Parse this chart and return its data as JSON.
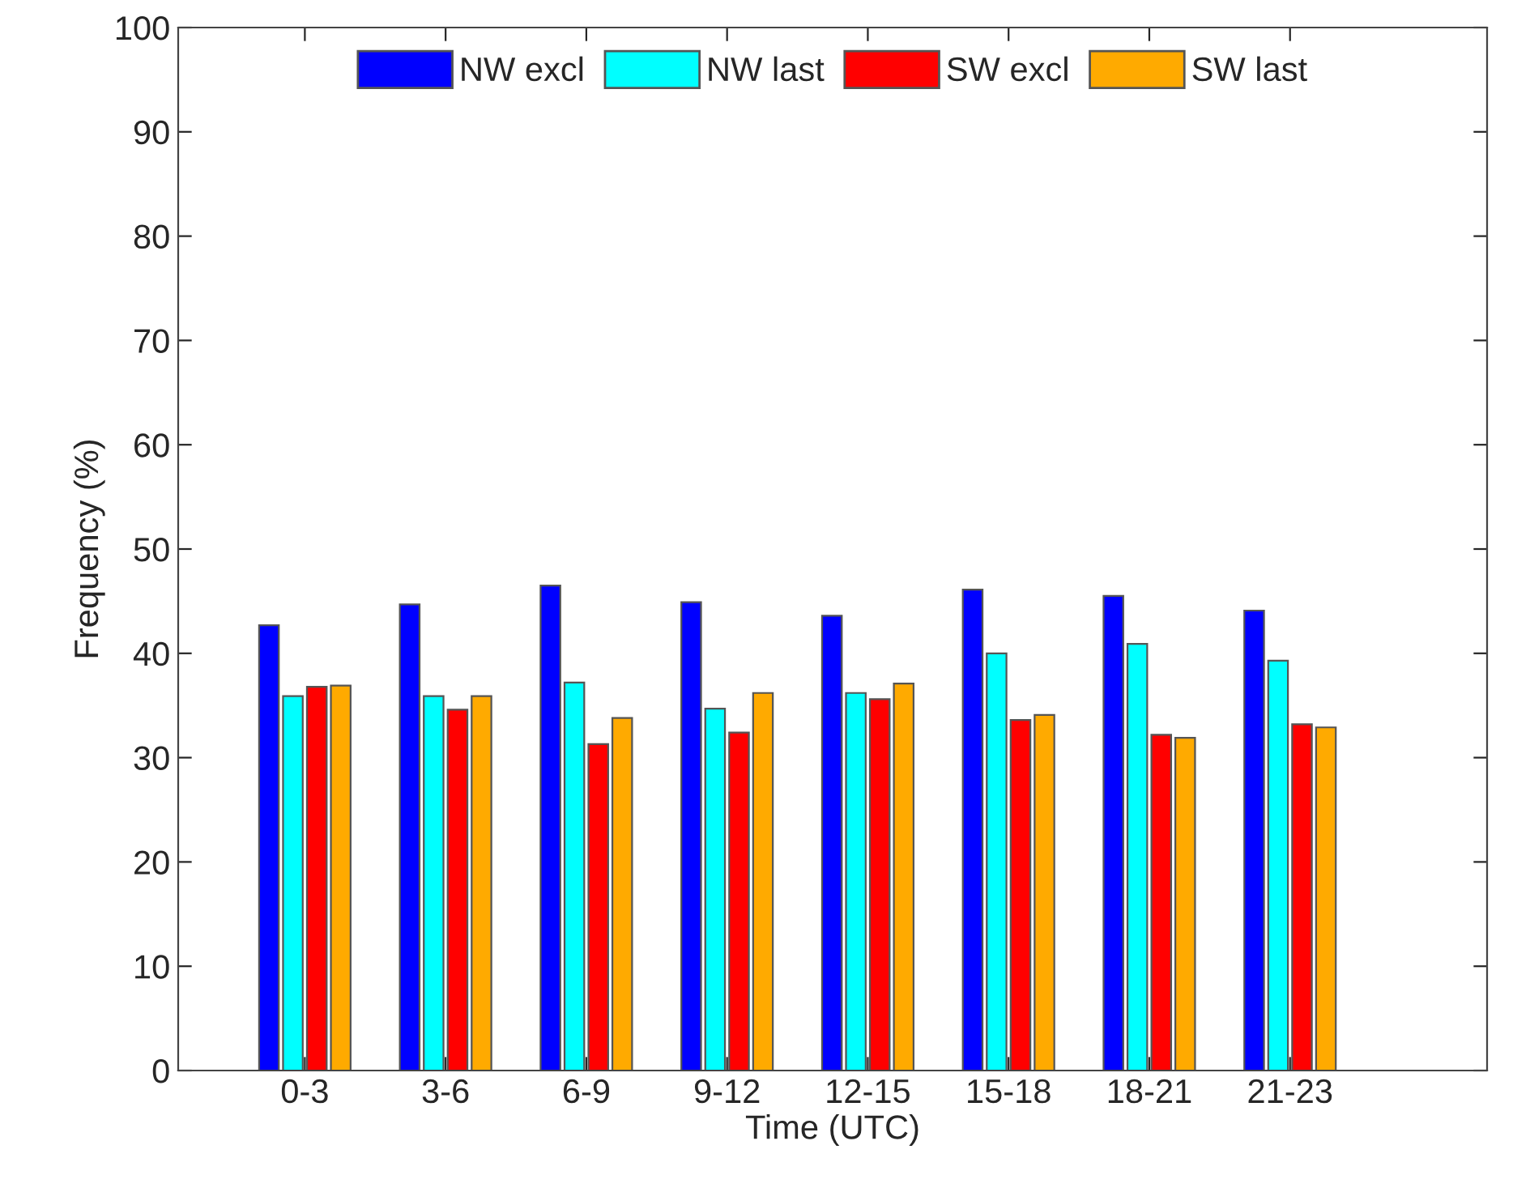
{
  "chart_data": {
    "type": "bar",
    "xlabel": "Time (UTC)",
    "ylabel": "Frequency (%)",
    "categories": [
      "0-3",
      "3-6",
      "6-9",
      "9-12",
      "12-15",
      "15-18",
      "18-21",
      "21-23"
    ],
    "series": [
      {
        "name": "NW excl",
        "color": "#0000ff",
        "values": [
          42.7,
          44.7,
          46.5,
          44.9,
          43.6,
          46.1,
          45.5,
          44.1
        ]
      },
      {
        "name": "NW last",
        "color": "#00ffff",
        "values": [
          35.9,
          35.9,
          37.2,
          34.7,
          36.2,
          40.0,
          40.9,
          39.3
        ]
      },
      {
        "name": "SW excl",
        "color": "#ff0000",
        "values": [
          36.8,
          34.6,
          31.3,
          32.4,
          35.6,
          33.6,
          32.2,
          33.2
        ]
      },
      {
        "name": "SW last",
        "color": "#ffaa00",
        "values": [
          36.9,
          35.9,
          33.8,
          36.2,
          37.1,
          34.1,
          31.9,
          32.9
        ]
      }
    ],
    "ylim": [
      0,
      100
    ],
    "yticks": [
      0,
      10,
      20,
      30,
      40,
      50,
      60,
      70,
      80,
      90,
      100
    ],
    "grid": false,
    "legend": "top"
  }
}
